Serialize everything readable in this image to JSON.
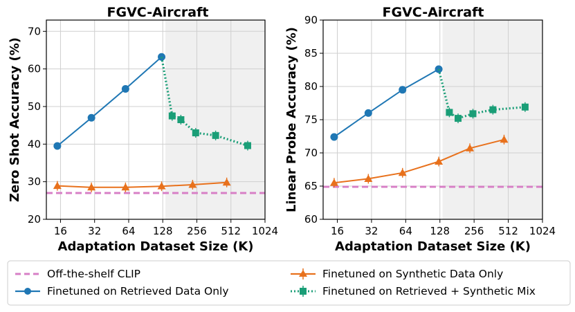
{
  "legend": {
    "off_the_shelf": "Off-the-shelf CLIP",
    "retrieved": "Finetuned on Retrieved Data Only",
    "synthetic": "Finetuned on Synthetic Data Only",
    "mix": "Finetuned on Retrieved + Synthetic Mix"
  },
  "colors": {
    "retrieved": "#1f77b4",
    "synthetic": "#e8711c",
    "mix": "#1a9e77",
    "baseline": "#d77fc6",
    "shade": "#f0f0f0",
    "grid": "#cfcfcf"
  },
  "chart_data": [
    {
      "type": "line",
      "title": "FGVC-Aircraft",
      "xlabel": "Adaptation Dataset Size (K)",
      "ylabel": "Zero Shot Accuracy (%)",
      "xscale": "log2",
      "xticks": [
        16,
        32,
        64,
        128,
        256,
        512,
        1024
      ],
      "xlim": [
        12,
        1024
      ],
      "yticks": [
        20,
        30,
        40,
        50,
        60,
        70
      ],
      "ylim": [
        20,
        73
      ],
      "shade_from_x": 135,
      "baseline": 27,
      "series": [
        {
          "name": "Finetuned on Retrieved Data Only",
          "key": "retrieved",
          "marker": "circle",
          "dash": false,
          "x": [
            15,
            30,
            60,
            125
          ],
          "y": [
            39.5,
            47.0,
            54.7,
            63.2
          ]
        },
        {
          "name": "Finetuned on Synthetic Data Only",
          "key": "synthetic",
          "marker": "triangle",
          "dash": false,
          "x": [
            15,
            30,
            60,
            125,
            235,
            470
          ],
          "y": [
            28.9,
            28.5,
            28.5,
            28.8,
            29.2,
            29.8
          ]
        },
        {
          "name": "Finetuned on Retrieved + Synthetic Mix",
          "key": "mix",
          "marker": "square",
          "dash": true,
          "x": [
            125,
            155,
            185,
            250,
            375,
            720
          ],
          "y": [
            63.2,
            47.5,
            46.5,
            43.0,
            42.3,
            39.6
          ]
        }
      ]
    },
    {
      "type": "line",
      "title": "FGVC-Aircraft",
      "xlabel": "Adaptation Dataset Size (K)",
      "ylabel": "Linear Probe Accuracy (%)",
      "xscale": "log2",
      "xticks": [
        16,
        32,
        64,
        128,
        256,
        512,
        1024
      ],
      "xlim": [
        12,
        1024
      ],
      "yticks": [
        60,
        65,
        70,
        75,
        80,
        85,
        90
      ],
      "ylim": [
        60,
        90
      ],
      "shade_from_x": 135,
      "baseline": 64.9,
      "series": [
        {
          "name": "Finetuned on Retrieved Data Only",
          "key": "retrieved",
          "marker": "circle",
          "dash": false,
          "x": [
            15,
            30,
            60,
            125
          ],
          "y": [
            72.4,
            76.0,
            79.5,
            82.6
          ]
        },
        {
          "name": "Finetuned on Synthetic Data Only",
          "key": "synthetic",
          "marker": "triangle",
          "dash": false,
          "x": [
            15,
            30,
            60,
            125,
            235,
            470
          ],
          "y": [
            65.5,
            66.1,
            67.0,
            68.7,
            70.7,
            72.0
          ]
        },
        {
          "name": "Finetuned on Retrieved + Synthetic Mix",
          "key": "mix",
          "marker": "square",
          "dash": true,
          "x": [
            125,
            155,
            185,
            250,
            375,
            720
          ],
          "y": [
            82.6,
            76.1,
            75.2,
            75.9,
            76.5,
            76.9
          ]
        }
      ]
    }
  ]
}
